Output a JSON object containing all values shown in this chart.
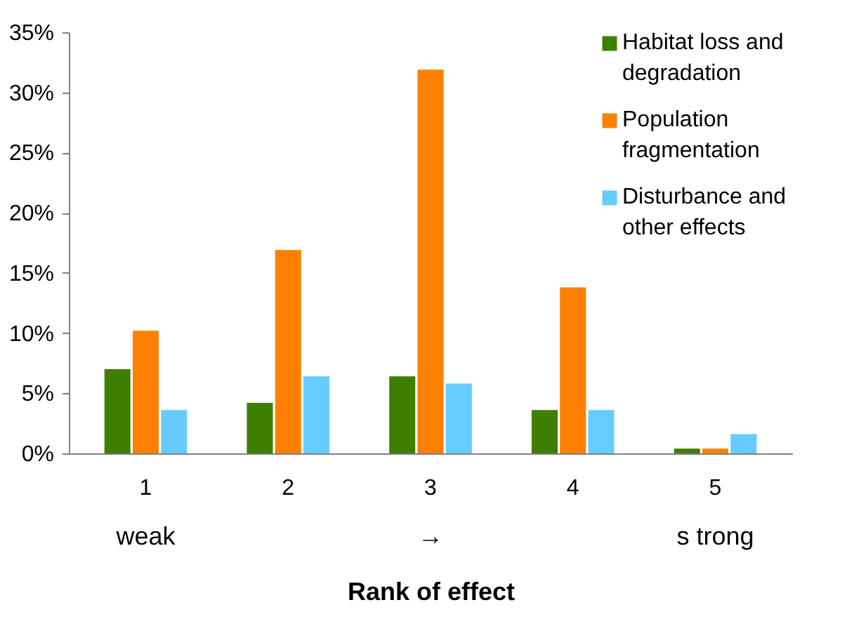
{
  "chart_data": {
    "type": "bar",
    "categories": [
      "1",
      "2",
      "3",
      "4",
      "5"
    ],
    "series": [
      {
        "name": "Habitat loss and degradation",
        "color": "#3f7f00",
        "values": [
          7.0,
          4.2,
          6.4,
          3.6,
          0.4
        ]
      },
      {
        "name": "Population fragmentation",
        "color": "#ff8000",
        "values": [
          10.2,
          16.9,
          31.9,
          13.8,
          0.4
        ]
      },
      {
        "name": "Disturbance and other effects",
        "color": "#66ccff",
        "values": [
          3.6,
          6.4,
          5.8,
          3.6,
          1.6
        ]
      }
    ],
    "xlabel": "Rank of effect",
    "ylim": [
      0,
      35
    ],
    "yticks": [
      {
        "value": 0,
        "label": "0%"
      },
      {
        "value": 5,
        "label": "5%"
      },
      {
        "value": 10,
        "label": "10%"
      },
      {
        "value": 15,
        "label": "15%"
      },
      {
        "value": 20,
        "label": "20%"
      },
      {
        "value": 25,
        "label": "25%"
      },
      {
        "value": 30,
        "label": "30%"
      },
      {
        "value": 35,
        "label": "35%"
      }
    ],
    "annotations": [
      "weak",
      "→",
      "s trong"
    ],
    "legend": "top right",
    "grid": false
  }
}
